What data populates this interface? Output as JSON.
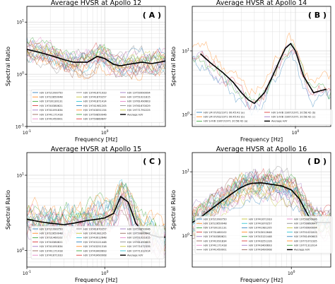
{
  "chart_data": [
    {
      "type": "line",
      "title": "Average HVSR at Apollo 12",
      "tag": "( A )",
      "xlabel": "Frequency [Hz]",
      "ylabel": "Spectral Ratio",
      "xscale": "log",
      "yscale": "log",
      "xlim": [
        0.1,
        6
      ],
      "ylim": [
        0.1,
        20
      ],
      "xticks": [
        {
          "v": 0.1,
          "label": "10^-1"
        },
        {
          "v": 1,
          "label": "10^0"
        }
      ],
      "yticks": [
        {
          "v": 0.1,
          "label": "10^-1"
        },
        {
          "v": 1,
          "label": "10^0"
        },
        {
          "v": 10,
          "label": "10^1"
        }
      ],
      "grid": true,
      "legend_position": "lower-center",
      "legend_columns": 3,
      "legend": [
        "H/V 19721990750",
        "H/V 19722850048",
        "H/V 19730130131",
        "H/V 19740380621",
        "H/V 19741091834",
        "H/V 19741171418",
        "H/V 19741450001",
        "H/V 19741671933",
        "H/V 19741870257",
        "H/V 19741871414",
        "H/V 19741981205",
        "H/V 19743051154",
        "H/V 19750850046",
        "H/V 19750860647",
        "H/V 19750990094",
        "H/V 19751021815",
        "H/V 19761490603",
        "H/V 19761670029",
        "H/V 19771792225",
        "Average H/V"
      ],
      "series": [
        {
          "name": "Average H/V",
          "x": [
            0.1,
            0.15,
            0.2,
            0.3,
            0.4,
            0.6,
            0.8,
            1,
            1.3,
            1.6,
            2,
            3,
            4,
            5,
            6
          ],
          "y": [
            3,
            2.6,
            2.3,
            1.9,
            1.7,
            1.7,
            2.2,
            2.0,
            1.55,
            1.45,
            1.55,
            1.7,
            1.6,
            1.7,
            1.8
          ]
        }
      ]
    },
    {
      "type": "line",
      "title": "Average HVSR at Apollo 14",
      "tag": "( B )",
      "xlabel": "Frequency [Hz]",
      "ylabel": "Spectral Ratio",
      "xscale": "log",
      "yscale": "log",
      "xlim": [
        0.1,
        2.2
      ],
      "ylim": [
        0.65,
        50
      ],
      "xticks": [
        {
          "v": 1,
          "label": "10^0"
        }
      ],
      "yticks": [
        {
          "v": 1,
          "label": "10^0"
        },
        {
          "v": 10,
          "label": "10^1"
        }
      ],
      "grid": true,
      "legend_position": "lower-left",
      "legend_columns": 2,
      "legend": [
        "H/V LM 07/02/1971 00:45:42 (a)",
        "H/V LM 07/02/1971 00:45:42 (b)",
        "H/V S-IVB 19/07/1971 20:58:42 (a)",
        "H/V S-IVB 19/07/1971 20:58:42 (b)",
        "H/V S-IVB 19/07/1971 20:58:42 (c)",
        "Average H/V"
      ],
      "series": [
        {
          "name": "Average H/V",
          "x": [
            0.12,
            0.15,
            0.2,
            0.25,
            0.3,
            0.35,
            0.4,
            0.5,
            0.6,
            0.7,
            0.8,
            0.9,
            1.0,
            1.2,
            1.5,
            1.8,
            2.0
          ],
          "y": [
            9,
            6.5,
            4.5,
            3.2,
            2.2,
            1.7,
            1.5,
            2.2,
            4,
            7,
            11,
            13,
            10,
            4,
            2.2,
            2.4,
            2.5
          ]
        }
      ]
    },
    {
      "type": "line",
      "title": "Average HVSR at Apollo 15",
      "tag": "( C )",
      "xlabel": "Frequency [Hz]",
      "ylabel": "Spectral Ratio",
      "xscale": "log",
      "yscale": "log",
      "xlim": [
        0.1,
        6
      ],
      "ylim": [
        0.6,
        20
      ],
      "xticks": [
        {
          "v": 0.1,
          "label": "10^-1"
        },
        {
          "v": 1,
          "label": "10^0"
        }
      ],
      "yticks": [
        {
          "v": 1,
          "label": "10^0"
        },
        {
          "v": 10,
          "label": "10^1"
        }
      ],
      "grid": true,
      "legend_position": "lower-center",
      "legend_columns": 3,
      "legend": [
        "H/V 19721990750",
        "H/V 19722650048",
        "H/V 19731460102",
        "H/V 19740380621",
        "H/V 19741091834",
        "H/V 19741171418",
        "H/V 19741671933",
        "H/V 19741870257",
        "H/V 19741981205",
        "H/V 19743012648",
        "H/V 19743121448",
        "H/V 19743251316",
        "H/V 19743400693",
        "H/V 19743490908",
        "H/V 19750850046",
        "H/V 19750860647",
        "H/V 19751021815",
        "H/V 19761490603",
        "H/V 19771072335",
        "H/V 19771312014",
        "Average H/V"
      ],
      "series": [
        {
          "name": "Average H/V",
          "x": [
            0.1,
            0.15,
            0.2,
            0.3,
            0.4,
            0.6,
            0.8,
            1,
            1.3,
            1.6,
            2,
            2.5,
            3,
            4,
            5,
            6
          ],
          "y": [
            2.6,
            2.4,
            2.3,
            2.2,
            2.3,
            2.5,
            2.6,
            2.7,
            3.1,
            5.2,
            4.4,
            2.3,
            1.8,
            1.6,
            1.5,
            1.5
          ]
        }
      ]
    },
    {
      "type": "line",
      "title": "Average HVSR at Apollo 16",
      "tag": "( D )",
      "xlabel": "Frequency [Hz]",
      "ylabel": "Spectral Ratio",
      "xscale": "log",
      "yscale": "log",
      "xlim": [
        0.1,
        2.5
      ],
      "ylim": [
        0.32,
        20
      ],
      "xticks": [
        {
          "v": 1,
          "label": "10^0"
        }
      ],
      "yticks": [
        {
          "v": 1,
          "label": "10^0"
        },
        {
          "v": 10,
          "label": "10^1"
        }
      ],
      "grid": true,
      "legend_position": "lower-center",
      "legend_columns": 3,
      "legend": [
        "H/V 19721990750",
        "H/V 19722650048",
        "H/V 19730131131",
        "H/V 19731460102",
        "H/V 19740380621",
        "H/V 19741091834",
        "H/V 19741171418",
        "H/V 19741450001",
        "H/V 19741671933",
        "H/V 19741870257",
        "H/V 19741981205",
        "H/V 19743012648",
        "H/V 19743121448",
        "H/V 19743251316",
        "H/V 19743400693",
        "H/V 19743490908",
        "H/V 19750850046",
        "H/V 19750860647",
        "H/V 19750990094",
        "H/V 19751021815",
        "H/V 19761490603",
        "H/V 19771072335",
        "H/V 19771312014",
        "Average H/V"
      ],
      "series": [
        {
          "name": "Average H/V",
          "x": [
            0.1,
            0.12,
            0.15,
            0.2,
            0.25,
            0.3,
            0.35,
            0.4,
            0.5,
            0.6,
            0.8,
            1.0,
            1.2,
            1.5,
            1.8,
            2.0,
            2.2,
            2.5
          ],
          "y": [
            1.6,
            1.9,
            2.5,
            3.5,
            4.5,
            5.5,
            6.2,
            6.6,
            6.7,
            6.4,
            6.0,
            5.2,
            3.8,
            2.0,
            1.6,
            1.6,
            1.6,
            1.6
          ]
        }
      ]
    }
  ],
  "colors": {
    "average": "#000000",
    "grid": "#d8d8d8",
    "palette": [
      "#1f77b4",
      "#ff7f0e",
      "#2ca02c",
      "#d62728",
      "#9467bd",
      "#8c564b",
      "#e377c2",
      "#7f7f7f",
      "#bcbd22",
      "#17becf"
    ]
  }
}
